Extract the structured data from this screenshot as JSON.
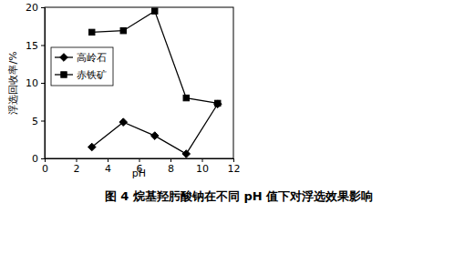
{
  "chart_data": {
    "type": "line",
    "title": "图 4 烷基羟肟酸钠在不同 pH 值下对浮选效果影响",
    "x_label": "pH",
    "y_label": "浮选回收率/%",
    "x": [
      3,
      5,
      7,
      9,
      11
    ],
    "series": [
      {
        "name": "高岭石",
        "color": "#000000",
        "marker": "diamond",
        "line_style": "solid",
        "values": [
          1.5,
          4.8,
          3.0,
          0.6,
          7.2
        ]
      },
      {
        "name": "赤铁矿",
        "color": "#000000",
        "marker": "square",
        "line_style": "solid",
        "values": [
          16.7,
          16.9,
          19.5,
          8.0,
          7.3
        ]
      }
    ],
    "xlim": [
      0,
      12
    ],
    "xticks": [
      0,
      2,
      4,
      6,
      8,
      10,
      12
    ],
    "ylim": [
      0,
      20
    ],
    "yticks": [
      0,
      5,
      10,
      15,
      20
    ],
    "grid": false,
    "legend": "upper left"
  }
}
